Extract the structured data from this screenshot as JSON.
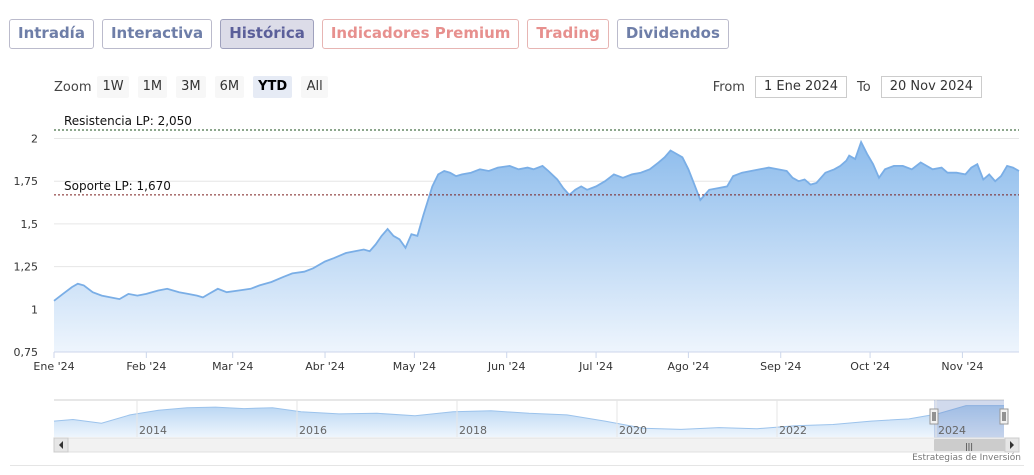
{
  "tabs": [
    {
      "label": "Intradía",
      "state": "normal"
    },
    {
      "label": "Interactiva",
      "state": "normal"
    },
    {
      "label": "Histórica",
      "state": "active"
    },
    {
      "label": "Indicadores Premium",
      "state": "premium"
    },
    {
      "label": "Trading",
      "state": "premium"
    },
    {
      "label": "Dividendos",
      "state": "normal"
    }
  ],
  "zoom": {
    "label": "Zoom",
    "buttons": [
      "1W",
      "1M",
      "3M",
      "6M",
      "YTD",
      "All"
    ],
    "selected": "YTD"
  },
  "range": {
    "from_label": "From",
    "from_value": "1 Ene 2024",
    "to_label": "To",
    "to_value": "20 Nov 2024"
  },
  "chart_data": {
    "type": "area",
    "title": "",
    "xlabel": "",
    "ylabel": "",
    "ylim": [
      0.75,
      2.05
    ],
    "y_ticks": [
      0.75,
      1,
      1.25,
      1.5,
      1.75,
      2
    ],
    "y_tick_labels": [
      "0,75",
      "1",
      "1,25",
      "1,5",
      "1,75",
      "2"
    ],
    "x_range": [
      "2024-01-01",
      "2024-11-20"
    ],
    "x_ticks": [
      {
        "date": "2024-01-01",
        "label": "Ene '24"
      },
      {
        "date": "2024-02-01",
        "label": "Feb '24"
      },
      {
        "date": "2024-03-01",
        "label": "Mar '24"
      },
      {
        "date": "2024-04-01",
        "label": "Abr '24"
      },
      {
        "date": "2024-05-01",
        "label": "May '24"
      },
      {
        "date": "2024-06-01",
        "label": "Jun '24"
      },
      {
        "date": "2024-07-01",
        "label": "Jul '24"
      },
      {
        "date": "2024-08-01",
        "label": "Ago '24"
      },
      {
        "date": "2024-09-01",
        "label": "Sep '24"
      },
      {
        "date": "2024-10-01",
        "label": "Oct '24"
      },
      {
        "date": "2024-11-01",
        "label": "Nov '24"
      }
    ],
    "grid": true,
    "line_color": "#7aaee6",
    "fill_top_color": "#8dbcec",
    "fill_bottom_color": "#eef5fd",
    "reference_lines": [
      {
        "label": "Resistencia LP: 2,050",
        "value": 2.05,
        "style": "dotted",
        "color": "#1a4d1a"
      },
      {
        "label": "Soporte LP: 1,670",
        "value": 1.67,
        "style": "dotted",
        "color": "#7a1f1f"
      }
    ],
    "series": [
      {
        "points": [
          [
            "2024-01-01",
            1.05
          ],
          [
            "2024-01-04",
            1.09
          ],
          [
            "2024-01-07",
            1.13
          ],
          [
            "2024-01-09",
            1.15
          ],
          [
            "2024-01-11",
            1.14
          ],
          [
            "2024-01-14",
            1.1
          ],
          [
            "2024-01-17",
            1.08
          ],
          [
            "2024-01-20",
            1.07
          ],
          [
            "2024-01-23",
            1.06
          ],
          [
            "2024-01-26",
            1.09
          ],
          [
            "2024-01-29",
            1.08
          ],
          [
            "2024-02-01",
            1.09
          ],
          [
            "2024-02-05",
            1.11
          ],
          [
            "2024-02-08",
            1.12
          ],
          [
            "2024-02-12",
            1.1
          ],
          [
            "2024-02-15",
            1.09
          ],
          [
            "2024-02-18",
            1.08
          ],
          [
            "2024-02-20",
            1.07
          ],
          [
            "2024-02-22",
            1.09
          ],
          [
            "2024-02-25",
            1.12
          ],
          [
            "2024-02-28",
            1.1
          ],
          [
            "2024-03-03",
            1.11
          ],
          [
            "2024-03-07",
            1.12
          ],
          [
            "2024-03-10",
            1.14
          ],
          [
            "2024-03-14",
            1.16
          ],
          [
            "2024-03-18",
            1.19
          ],
          [
            "2024-03-21",
            1.21
          ],
          [
            "2024-03-25",
            1.22
          ],
          [
            "2024-03-28",
            1.24
          ],
          [
            "2024-04-01",
            1.28
          ],
          [
            "2024-04-04",
            1.3
          ],
          [
            "2024-04-08",
            1.33
          ],
          [
            "2024-04-11",
            1.34
          ],
          [
            "2024-04-14",
            1.35
          ],
          [
            "2024-04-16",
            1.34
          ],
          [
            "2024-04-18",
            1.38
          ],
          [
            "2024-04-20",
            1.43
          ],
          [
            "2024-04-22",
            1.47
          ],
          [
            "2024-04-24",
            1.43
          ],
          [
            "2024-04-26",
            1.41
          ],
          [
            "2024-04-28",
            1.36
          ],
          [
            "2024-04-30",
            1.44
          ],
          [
            "2024-05-02",
            1.43
          ],
          [
            "2024-05-04",
            1.55
          ],
          [
            "2024-05-07",
            1.72
          ],
          [
            "2024-05-09",
            1.79
          ],
          [
            "2024-05-11",
            1.81
          ],
          [
            "2024-05-13",
            1.8
          ],
          [
            "2024-05-15",
            1.78
          ],
          [
            "2024-05-17",
            1.79
          ],
          [
            "2024-05-20",
            1.8
          ],
          [
            "2024-05-23",
            1.82
          ],
          [
            "2024-05-26",
            1.81
          ],
          [
            "2024-05-29",
            1.83
          ],
          [
            "2024-06-02",
            1.84
          ],
          [
            "2024-06-05",
            1.82
          ],
          [
            "2024-06-08",
            1.83
          ],
          [
            "2024-06-10",
            1.82
          ],
          [
            "2024-06-13",
            1.84
          ],
          [
            "2024-06-15",
            1.81
          ],
          [
            "2024-06-18",
            1.76
          ],
          [
            "2024-06-20",
            1.71
          ],
          [
            "2024-06-22",
            1.67
          ],
          [
            "2024-06-24",
            1.7
          ],
          [
            "2024-06-26",
            1.72
          ],
          [
            "2024-06-28",
            1.7
          ],
          [
            "2024-07-01",
            1.72
          ],
          [
            "2024-07-04",
            1.75
          ],
          [
            "2024-07-07",
            1.79
          ],
          [
            "2024-07-10",
            1.77
          ],
          [
            "2024-07-13",
            1.79
          ],
          [
            "2024-07-16",
            1.8
          ],
          [
            "2024-07-19",
            1.82
          ],
          [
            "2024-07-22",
            1.86
          ],
          [
            "2024-07-24",
            1.89
          ],
          [
            "2024-07-26",
            1.93
          ],
          [
            "2024-07-28",
            1.91
          ],
          [
            "2024-07-30",
            1.89
          ],
          [
            "2024-08-01",
            1.82
          ],
          [
            "2024-08-03",
            1.73
          ],
          [
            "2024-08-05",
            1.64
          ],
          [
            "2024-08-08",
            1.7
          ],
          [
            "2024-08-11",
            1.71
          ],
          [
            "2024-08-14",
            1.72
          ],
          [
            "2024-08-16",
            1.78
          ],
          [
            "2024-08-19",
            1.8
          ],
          [
            "2024-08-22",
            1.81
          ],
          [
            "2024-08-25",
            1.82
          ],
          [
            "2024-08-28",
            1.83
          ],
          [
            "2024-08-31",
            1.82
          ],
          [
            "2024-09-03",
            1.81
          ],
          [
            "2024-09-05",
            1.77
          ],
          [
            "2024-09-07",
            1.75
          ],
          [
            "2024-09-09",
            1.76
          ],
          [
            "2024-09-11",
            1.73
          ],
          [
            "2024-09-13",
            1.74
          ],
          [
            "2024-09-16",
            1.8
          ],
          [
            "2024-09-19",
            1.82
          ],
          [
            "2024-09-21",
            1.84
          ],
          [
            "2024-09-23",
            1.87
          ],
          [
            "2024-09-24",
            1.9
          ],
          [
            "2024-09-26",
            1.88
          ],
          [
            "2024-09-28",
            1.98
          ],
          [
            "2024-09-30",
            1.91
          ],
          [
            "2024-10-02",
            1.85
          ],
          [
            "2024-10-04",
            1.77
          ],
          [
            "2024-10-06",
            1.82
          ],
          [
            "2024-10-09",
            1.84
          ],
          [
            "2024-10-12",
            1.84
          ],
          [
            "2024-10-15",
            1.82
          ],
          [
            "2024-10-18",
            1.86
          ],
          [
            "2024-10-20",
            1.84
          ],
          [
            "2024-10-22",
            1.82
          ],
          [
            "2024-10-25",
            1.83
          ],
          [
            "2024-10-27",
            1.8
          ],
          [
            "2024-10-30",
            1.8
          ],
          [
            "2024-11-02",
            1.79
          ],
          [
            "2024-11-04",
            1.83
          ],
          [
            "2024-11-06",
            1.85
          ],
          [
            "2024-11-08",
            1.76
          ],
          [
            "2024-11-10",
            1.79
          ],
          [
            "2024-11-12",
            1.75
          ],
          [
            "2024-11-14",
            1.78
          ],
          [
            "2024-11-16",
            1.84
          ],
          [
            "2024-11-18",
            1.83
          ],
          [
            "2024-11-20",
            1.81
          ]
        ]
      }
    ]
  },
  "navigator": {
    "x_labels": [
      "2014",
      "2016",
      "2018",
      "2020",
      "2022",
      "2024"
    ],
    "handle_icon": "grip-lines-icon",
    "scroll_left_icon": "arrow-left-icon",
    "scroll_right_icon": "arrow-right-icon"
  },
  "watermark": "Estrategias de Inversión"
}
